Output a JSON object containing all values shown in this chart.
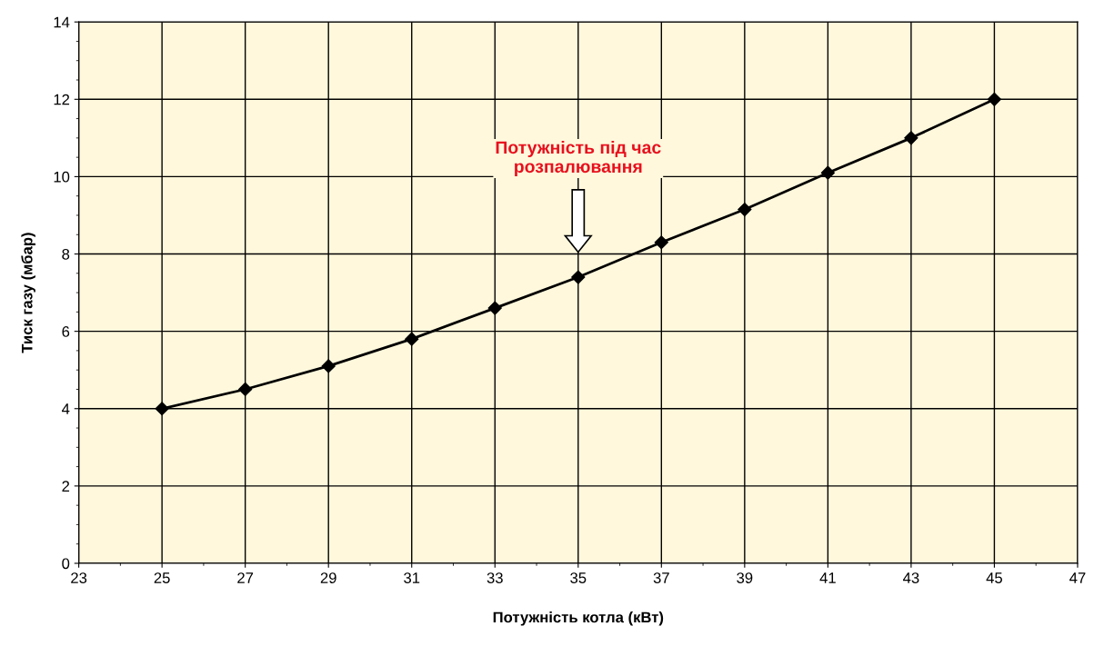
{
  "chart_data": {
    "type": "line",
    "xlabel": "Потужність котла (кВт)",
    "ylabel": "Тиск газу (мбар)",
    "x": [
      25,
      27,
      29,
      31,
      33,
      35,
      37,
      39,
      41,
      43,
      45
    ],
    "series": [
      {
        "color": "#000000",
        "values": [
          4.0,
          4.5,
          5.1,
          5.8,
          6.6,
          7.4,
          8.3,
          9.15,
          10.1,
          11.0,
          12.0
        ]
      }
    ],
    "xlim": [
      23,
      47
    ],
    "xticks": [
      23,
      25,
      27,
      29,
      31,
      33,
      35,
      37,
      39,
      41,
      43,
      45,
      47
    ],
    "ylim": [
      0,
      14
    ],
    "yticks": [
      0,
      2,
      4,
      6,
      8,
      10,
      12,
      14
    ],
    "grid": true,
    "marker": "diamond",
    "line_style": "solid",
    "annotations": [
      "Потужність під час\nрозпалювання"
    ]
  }
}
